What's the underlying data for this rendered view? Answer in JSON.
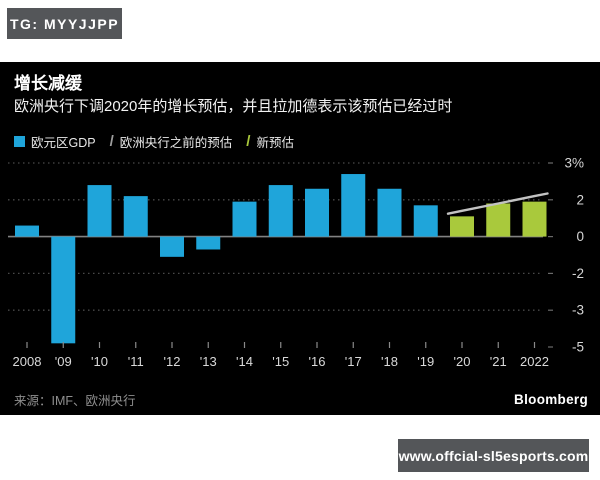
{
  "overlays": {
    "top_badge": "TG: MYYJJPP",
    "bottom_badge": "www.offcial-sl5esports.com"
  },
  "chart": {
    "title": "增长减缓",
    "subtitle": "欧洲央行下调2020年的增长预估，并且拉加德表示该预估已经过时",
    "legend": [
      {
        "label": "欧元区GDP",
        "marker": "square",
        "glyph": "",
        "color": "#1fa5da"
      },
      {
        "label": "欧洲央行之前的预估",
        "marker": "slash",
        "glyph": "/",
        "color": "#9e9e9e"
      },
      {
        "label": "新预估",
        "marker": "slash",
        "glyph": "/",
        "color": "#a9c93c"
      }
    ],
    "source": "来源：IMF、欧洲央行",
    "brand": "Bloomberg"
  },
  "chart_data": {
    "type": "bar",
    "title": "增长减缓",
    "categories": [
      "2008",
      "'09",
      "'10",
      "'11",
      "'12",
      "'13",
      "'14",
      "'15",
      "'16",
      "'17",
      "'18",
      "'19",
      "'20",
      "'21",
      "2022"
    ],
    "values": [
      0.6,
      -4.8,
      2.4,
      2.1,
      -1.1,
      -0.7,
      1.9,
      2.4,
      2.3,
      2.7,
      2.3,
      1.7,
      1.1,
      1.8,
      1.9
    ],
    "series_name": "欧元区GDP",
    "bar_color": "#1fa5da",
    "forecast_start_index": 12,
    "forecast_name": "新预估",
    "forecast_color": "#a9c93c",
    "previous_forecast": {
      "name": "欧洲央行之前的预估",
      "start_index": 12,
      "values": [
        1.4,
        1.8,
        2.1
      ],
      "color": "#c2c2c2"
    },
    "y_tick_labels": [
      "3%",
      "2",
      "0",
      "-2",
      "-3",
      "-5"
    ],
    "y_tick_values": [
      3,
      2,
      0,
      -2,
      -3,
      -5
    ],
    "xlabel": "",
    "ylabel": "",
    "grid": "dotted horizontal gridlines, solid zero line",
    "legend_position": "top-left",
    "background": "#000000"
  }
}
